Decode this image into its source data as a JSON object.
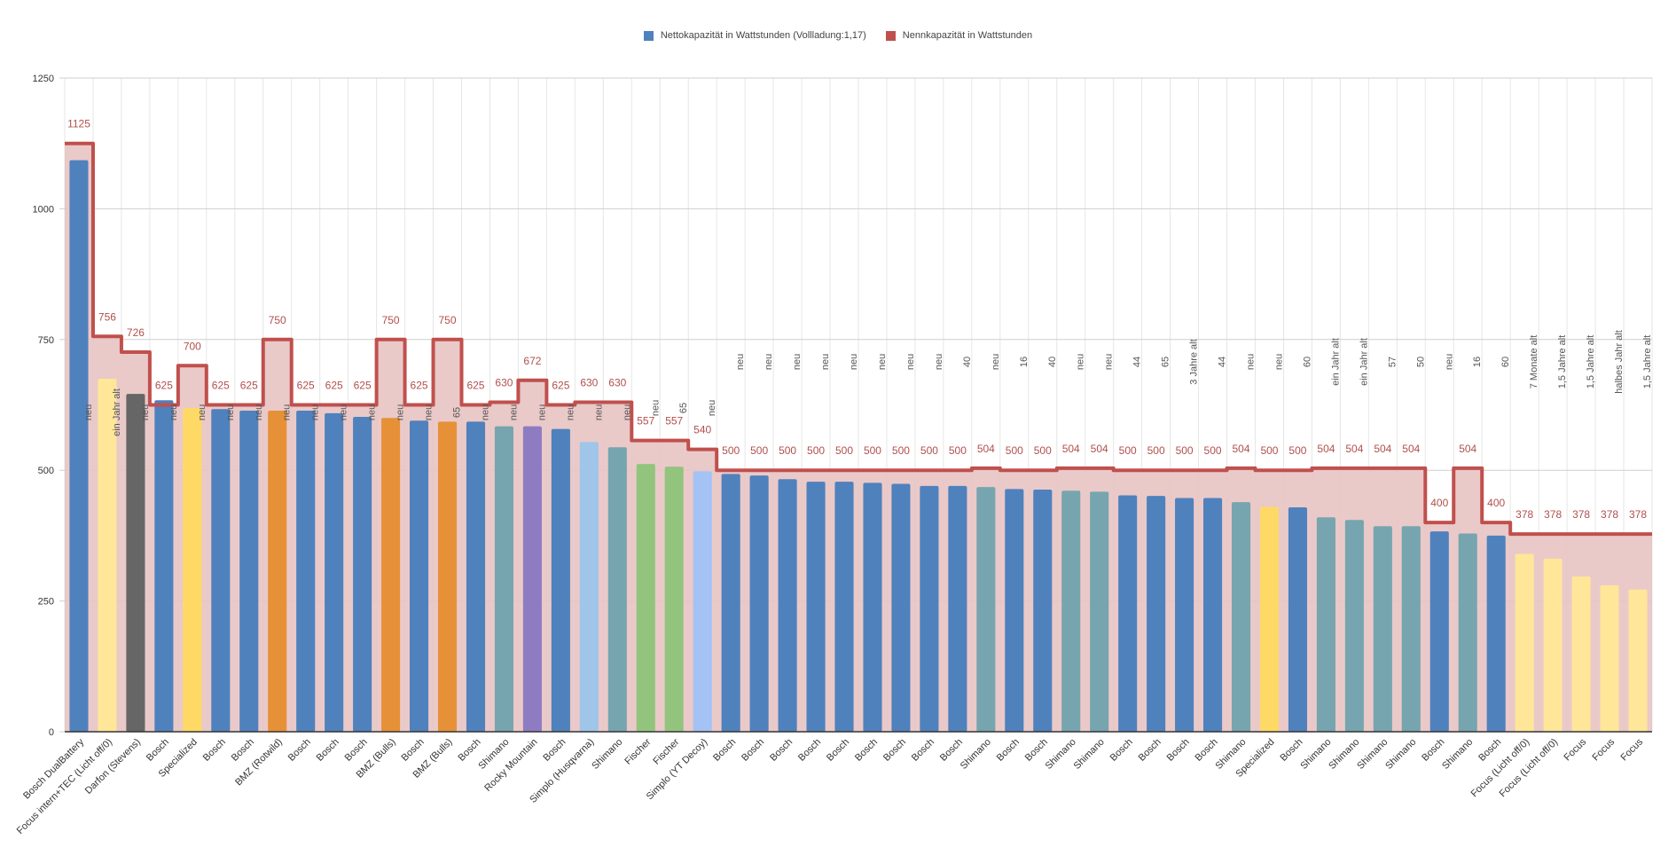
{
  "chart_data": {
    "type": "bar",
    "title": "",
    "xlabel": "",
    "ylabel": "",
    "ylim": [
      0,
      1250
    ],
    "yticks": [
      0,
      250,
      500,
      750,
      1000,
      1250
    ],
    "grid": true,
    "legend_position": "top-center",
    "categories": [
      "Bosch DualBattery",
      "Focus intern+TEC (Licht off/0)",
      "Darfon (Stevens)",
      "Bosch",
      "Specialized",
      "Bosch",
      "Bosch",
      "BMZ (Rotwild)",
      "Bosch",
      "Bosch",
      "Bosch",
      "BMZ (Bulls)",
      "Bosch",
      "BMZ (Bulls)",
      "Bosch",
      "Shimano",
      "Rocky Mountain",
      "Bosch",
      "Simplo (Husqvarna)",
      "Shimano",
      "Fischer",
      "Fischer",
      "Simplo (YT Decoy)",
      "Bosch",
      "Bosch",
      "Bosch",
      "Bosch",
      "Bosch",
      "Bosch",
      "Bosch",
      "Bosch",
      "Bosch",
      "Shimano",
      "Bosch",
      "Bosch",
      "Shimano",
      "Shimano",
      "Bosch",
      "Bosch",
      "Bosch",
      "Bosch",
      "Shimano",
      "Specialized",
      "Bosch",
      "Shimano",
      "Shimano",
      "Shimano",
      "Shimano",
      "Bosch",
      "Shimano",
      "Bosch",
      "Focus (Licht off/0)",
      "Focus (Licht off/0)",
      "Focus",
      "Focus",
      "Focus"
    ],
    "series": [
      {
        "name": "Nettokapazität in Wattstunden (Vollladung:1,17)",
        "type": "bar",
        "legend_color": "#4f81bd",
        "values": [
          1093,
          675,
          646,
          634,
          619,
          617,
          614,
          614,
          614,
          609,
          602,
          600,
          595,
          593,
          593,
          584,
          584,
          579,
          554,
          544,
          512,
          507,
          498,
          493,
          490,
          483,
          478,
          478,
          476,
          474,
          470,
          470,
          468,
          464,
          463,
          461,
          459,
          452,
          451,
          447,
          447,
          439,
          430,
          429,
          410,
          405,
          393,
          393,
          383,
          379,
          375,
          340,
          331,
          297,
          280,
          272
        ],
        "colors": [
          "#4f81bd",
          "#ffe699",
          "#666666",
          "#4f81bd",
          "#ffd966",
          "#4f81bd",
          "#4f81bd",
          "#e69138",
          "#4f81bd",
          "#4f81bd",
          "#4f81bd",
          "#e69138",
          "#4f81bd",
          "#e69138",
          "#4f81bd",
          "#76a5af",
          "#8e7cc3",
          "#4f81bd",
          "#9fc5e8",
          "#76a5af",
          "#93c47d",
          "#93c47d",
          "#a4c2f4",
          "#4f81bd",
          "#4f81bd",
          "#4f81bd",
          "#4f81bd",
          "#4f81bd",
          "#4f81bd",
          "#4f81bd",
          "#4f81bd",
          "#4f81bd",
          "#76a5af",
          "#4f81bd",
          "#4f81bd",
          "#76a5af",
          "#76a5af",
          "#4f81bd",
          "#4f81bd",
          "#4f81bd",
          "#4f81bd",
          "#76a5af",
          "#ffd966",
          "#4f81bd",
          "#76a5af",
          "#76a5af",
          "#76a5af",
          "#76a5af",
          "#4f81bd",
          "#76a5af",
          "#4f81bd",
          "#ffe699",
          "#ffe699",
          "#ffe699",
          "#ffe699",
          "#ffe699"
        ]
      },
      {
        "name": "Nennkapazität in Wattstunden",
        "type": "step-area",
        "legend_color": "#c0504d",
        "fill_color": "#e8c3c3",
        "values": [
          1125,
          756,
          726,
          625,
          700,
          625,
          625,
          750,
          625,
          625,
          625,
          750,
          625,
          750,
          625,
          630,
          672,
          625,
          630,
          630,
          557,
          557,
          540,
          500,
          500,
          500,
          500,
          500,
          500,
          500,
          500,
          500,
          504,
          500,
          500,
          504,
          504,
          500,
          500,
          500,
          500,
          504,
          500,
          500,
          504,
          504,
          504,
          504,
          400,
          504,
          400,
          378,
          378,
          378,
          378,
          378
        ]
      }
    ],
    "annotations": [
      "neu",
      "ein Jahr alt",
      "neu",
      "neu",
      "neu",
      "neu",
      "neu",
      "neu",
      "neu",
      "neu",
      "neu",
      "neu",
      "neu",
      "65",
      "neu",
      "neu",
      "neu",
      "neu",
      "neu",
      "neu",
      "neu",
      "65",
      "neu",
      "neu",
      "neu",
      "neu",
      "neu",
      "neu",
      "neu",
      "neu",
      "neu",
      "40",
      "neu",
      "16",
      "40",
      "neu",
      "neu",
      "44",
      "65",
      "3 Jahre alt",
      "44",
      "neu",
      "neu",
      "60",
      "ein Jahr alt",
      "ein Jahr alt",
      "57",
      "50",
      "neu",
      "16",
      "60",
      "7 Monate alt",
      "1,5 Jahre alt",
      "1,5 Jahre alt",
      "halbes Jahr alt",
      "1,5 Jahre alt"
    ]
  },
  "legend": {
    "items": [
      {
        "label": "Nettokapazität in Wattstunden (Vollladung:1,17)",
        "color": "#4f81bd"
      },
      {
        "label": "Nennkapazität in Wattstunden",
        "color": "#c0504d"
      }
    ]
  }
}
